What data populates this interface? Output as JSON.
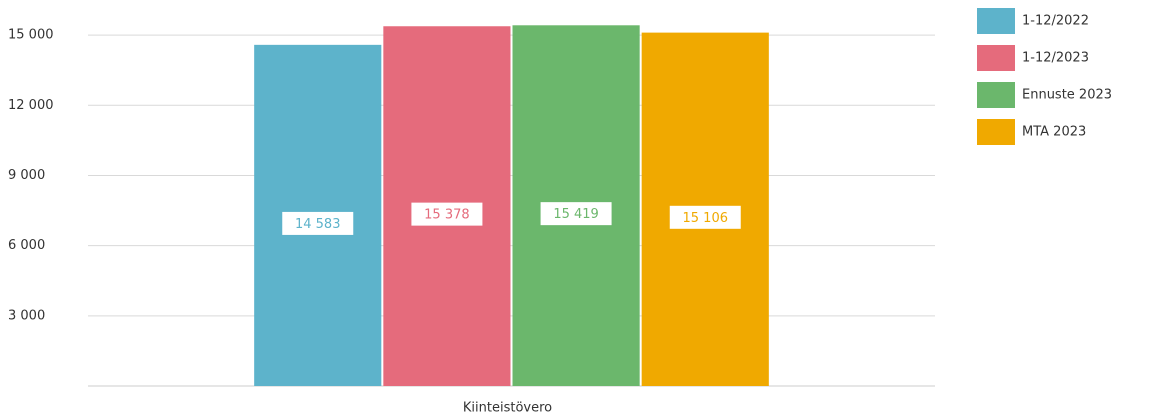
{
  "chart_data": {
    "type": "bar",
    "categories": [
      "Kiinteistövero"
    ],
    "series": [
      {
        "name": "1-12/2022",
        "color": "#5db3cb",
        "values": [
          14583
        ],
        "value_labels": [
          "14 583"
        ]
      },
      {
        "name": "1-12/2023",
        "color": "#e56b7c",
        "values": [
          15378
        ],
        "value_labels": [
          "15 378"
        ]
      },
      {
        "name": "Ennuste 2023",
        "color": "#6bb76c",
        "values": [
          15419
        ],
        "value_labels": [
          "15 419"
        ]
      },
      {
        "name": "MTA 2023",
        "color": "#f0a900",
        "values": [
          15106
        ],
        "value_labels": [
          "15 106"
        ]
      }
    ],
    "ylim": [
      0,
      16500
    ],
    "yticks": [
      {
        "value": 3000,
        "label": "3 000"
      },
      {
        "value": 6000,
        "label": "6 000"
      },
      {
        "value": 9000,
        "label": "9 000"
      },
      {
        "value": 12000,
        "label": "12 000"
      },
      {
        "value": 15000,
        "label": "15 000"
      }
    ],
    "grid": true,
    "legend": "right"
  }
}
